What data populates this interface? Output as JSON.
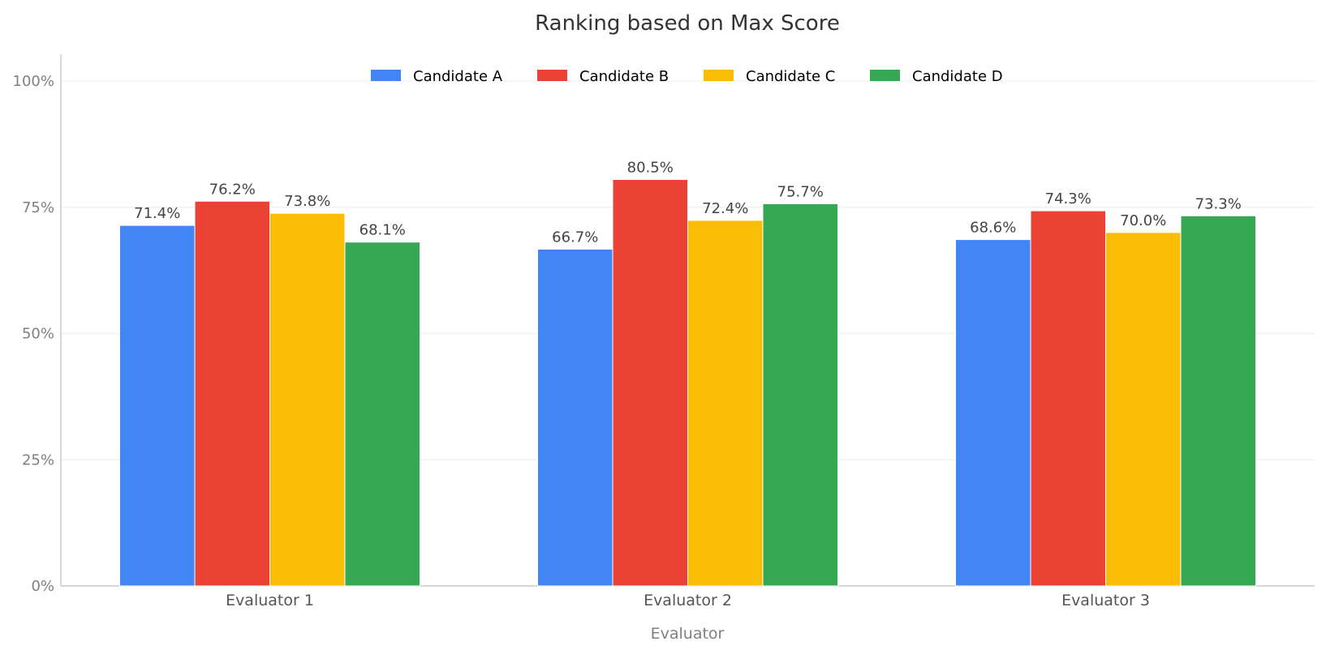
{
  "chart_data": {
    "type": "bar",
    "title": "Ranking based on Max Score",
    "xlabel": "Evaluator",
    "ylabel": "",
    "categories": [
      "Evaluator 1",
      "Evaluator 2",
      "Evaluator 3"
    ],
    "ylim": [
      0,
      100
    ],
    "yticks": [
      0,
      25,
      50,
      75,
      100
    ],
    "ytick_labels": [
      "0%",
      "25%",
      "50%",
      "75%",
      "100%"
    ],
    "grid": true,
    "legend_position": "top-center",
    "series": [
      {
        "name": "Candidate A",
        "color": "#4285F4",
        "values": [
          71.4,
          66.7,
          68.6
        ],
        "labels": [
          "71.4%",
          "66.7%",
          "68.6%"
        ]
      },
      {
        "name": "Candidate B",
        "color": "#EA4335",
        "values": [
          76.2,
          80.5,
          74.3
        ],
        "labels": [
          "76.2%",
          "80.5%",
          "74.3%"
        ]
      },
      {
        "name": "Candidate C",
        "color": "#FBBC04",
        "values": [
          73.8,
          72.4,
          70.0
        ],
        "labels": [
          "73.8%",
          "72.4%",
          "70.0%"
        ]
      },
      {
        "name": "Candidate D",
        "color": "#34A853",
        "values": [
          68.1,
          75.7,
          73.3
        ],
        "labels": [
          "68.1%",
          "75.7%",
          "73.3%"
        ]
      }
    ]
  }
}
